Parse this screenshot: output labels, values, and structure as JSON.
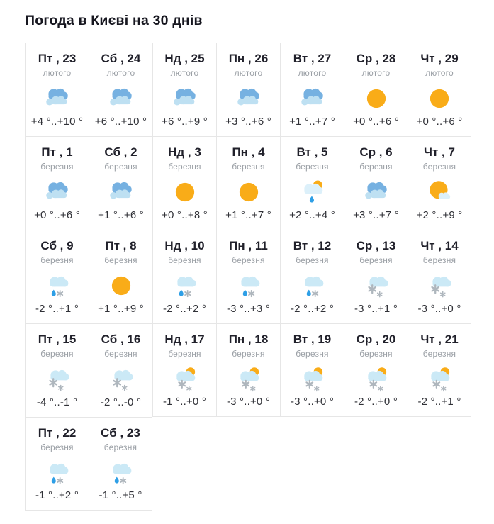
{
  "header": {
    "title": "Погода в Києві на 30 днів"
  },
  "colors": {
    "sun": "#F9AC18",
    "cloud_blue": "#76B1E1",
    "cloud_light": "#BEE0F2",
    "cloud_pale": "#CBE9F6",
    "cloud_paler": "#DCF0FA",
    "rain_drop": "#2E9FE6",
    "snowflake": "#AEB6BD",
    "border": "#E6E6E6"
  },
  "cards": [
    {
      "day": "Пт , 23",
      "month": "лютого",
      "icon": "cloudy",
      "temp": "+4 °..+10 °"
    },
    {
      "day": "Сб , 24",
      "month": "лютого",
      "icon": "cloudy",
      "temp": "+6 °..+10 °"
    },
    {
      "day": "Нд , 25",
      "month": "лютого",
      "icon": "cloudy",
      "temp": "+6 °..+9 °"
    },
    {
      "day": "Пн , 26",
      "month": "лютого",
      "icon": "cloudy",
      "temp": "+3 °..+6 °"
    },
    {
      "day": "Вт , 27",
      "month": "лютого",
      "icon": "cloudy",
      "temp": "+1 °..+7 °"
    },
    {
      "day": "Ср , 28",
      "month": "лютого",
      "icon": "sunny",
      "temp": "+0 °..+6 °"
    },
    {
      "day": "Чт , 29",
      "month": "лютого",
      "icon": "sunny",
      "temp": "+0 °..+6 °"
    },
    {
      "day": "Пт , 1",
      "month": "березня",
      "icon": "cloudy",
      "temp": "+0 °..+6 °"
    },
    {
      "day": "Сб , 2",
      "month": "березня",
      "icon": "cloudy",
      "temp": "+1 °..+6 °"
    },
    {
      "day": "Нд , 3",
      "month": "березня",
      "icon": "sunny",
      "temp": "+0 °..+8 °"
    },
    {
      "day": "Пн , 4",
      "month": "березня",
      "icon": "sunny",
      "temp": "+1 °..+7 °"
    },
    {
      "day": "Вт , 5",
      "month": "березня",
      "icon": "rain-sun",
      "temp": "+2 °..+4 °"
    },
    {
      "day": "Ср , 6",
      "month": "березня",
      "icon": "cloudy",
      "temp": "+3 °..+7 °"
    },
    {
      "day": "Чт , 7",
      "month": "березня",
      "icon": "sun-cloud",
      "temp": "+2 °..+9 °"
    },
    {
      "day": "Сб , 9",
      "month": "березня",
      "icon": "sleet",
      "temp": "-2 °..+1 °"
    },
    {
      "day": "Пт , 8",
      "month": "березня",
      "icon": "sunny",
      "temp": "+1 °..+9 °"
    },
    {
      "day": "Нд , 10",
      "month": "березня",
      "icon": "sleet",
      "temp": "-2 °..+2 °"
    },
    {
      "day": "Пн , 11",
      "month": "березня",
      "icon": "sleet",
      "temp": "-3 °..+3 °"
    },
    {
      "day": "Вт , 12",
      "month": "березня",
      "icon": "sleet",
      "temp": "-2 °..+2 °"
    },
    {
      "day": "Ср , 13",
      "month": "березня",
      "icon": "snow",
      "temp": "-3 °..+1 °"
    },
    {
      "day": "Чт , 14",
      "month": "березня",
      "icon": "snow",
      "temp": "-3 °..+0 °"
    },
    {
      "day": "Пт , 15",
      "month": "березня",
      "icon": "snow",
      "temp": "-4 °..-1 °"
    },
    {
      "day": "Сб , 16",
      "month": "березня",
      "icon": "snow",
      "temp": "-2 °..-0 °"
    },
    {
      "day": "Нд , 17",
      "month": "березня",
      "icon": "snow-sun",
      "temp": "-1 °..+0 °"
    },
    {
      "day": "Пн , 18",
      "month": "березня",
      "icon": "snow-sun",
      "temp": "-3 °..+0 °"
    },
    {
      "day": "Вт , 19",
      "month": "березня",
      "icon": "snow-sun",
      "temp": "-3 °..+0 °"
    },
    {
      "day": "Ср , 20",
      "month": "березня",
      "icon": "snow-sun",
      "temp": "-2 °..+0 °"
    },
    {
      "day": "Чт , 21",
      "month": "березня",
      "icon": "snow-sun",
      "temp": "-2 °..+1 °"
    },
    {
      "day": "Пт , 22",
      "month": "березня",
      "icon": "sleet",
      "temp": "-1 °..+2 °"
    },
    {
      "day": "Сб , 23",
      "month": "березня",
      "icon": "sleet",
      "temp": "-1 °..+5 °"
    }
  ]
}
